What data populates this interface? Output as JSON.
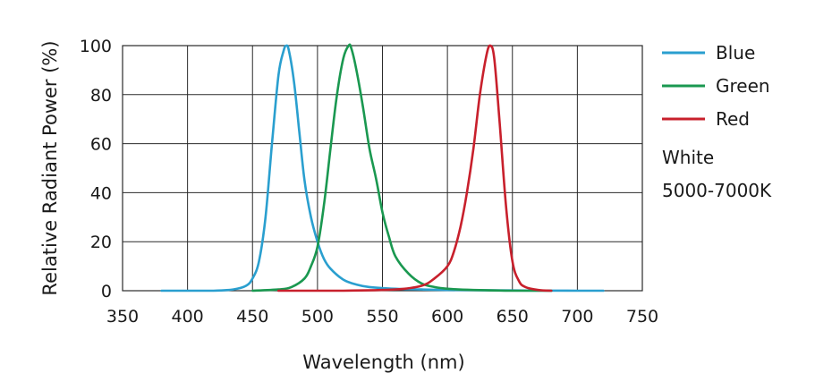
{
  "chart_data": {
    "type": "line",
    "xlabel": "Wavelength (nm)",
    "ylabel": "Relative Radiant Power (%)",
    "xlim": [
      350,
      750
    ],
    "ylim": [
      0,
      100
    ],
    "x_ticks": [
      350,
      400,
      450,
      500,
      550,
      600,
      650,
      700,
      750
    ],
    "y_ticks": [
      0,
      20,
      40,
      60,
      80,
      100
    ],
    "grid": true,
    "legend_position": "right",
    "series": [
      {
        "name": "Blue",
        "color": "#2a9fcf",
        "x": [
          380,
          400,
          420,
          435,
          445,
          450,
          455,
          460,
          465,
          470,
          474,
          476,
          478,
          482,
          486,
          490,
          495,
          500,
          505,
          510,
          520,
          530,
          540,
          560,
          580,
          600,
          650,
          700,
          720
        ],
        "y": [
          0,
          0,
          0,
          0.5,
          2,
          5,
          12,
          30,
          60,
          88,
          98,
          100,
          98,
          85,
          65,
          45,
          30,
          20,
          13,
          9,
          4.5,
          2.5,
          1.5,
          0.8,
          0.5,
          0.3,
          0.1,
          0,
          0
        ]
      },
      {
        "name": "Green",
        "color": "#1a9850",
        "x": [
          450,
          470,
          480,
          490,
          495,
          500,
          505,
          510,
          515,
          520,
          524,
          526,
          530,
          535,
          540,
          545,
          550,
          555,
          560,
          570,
          580,
          590,
          600,
          620,
          650,
          680
        ],
        "y": [
          0,
          0.5,
          1.5,
          5,
          10,
          18,
          35,
          58,
          80,
          95,
          100,
          99,
          90,
          75,
          58,
          46,
          32,
          22,
          14,
          7,
          3,
          1.5,
          0.8,
          0.3,
          0,
          0
        ]
      },
      {
        "name": "Red",
        "color": "#c8202c",
        "x": [
          470,
          520,
          560,
          580,
          590,
          600,
          605,
          610,
          615,
          620,
          625,
          630,
          633,
          636,
          640,
          645,
          650,
          655,
          660,
          670,
          680
        ],
        "y": [
          0,
          0,
          0.5,
          2,
          5,
          10,
          16,
          26,
          40,
          58,
          80,
          96,
          100,
          95,
          70,
          35,
          12,
          4,
          1.5,
          0.3,
          0
        ]
      }
    ],
    "annotations": [
      "White",
      "5000-7000K"
    ]
  }
}
